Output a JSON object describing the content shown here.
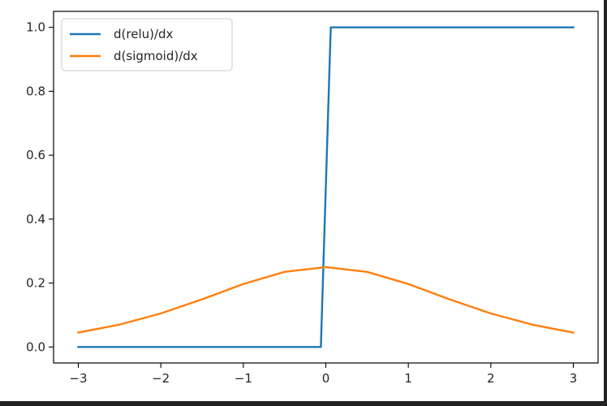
{
  "chart_data": {
    "type": "line",
    "title": "",
    "xlabel": "",
    "ylabel": "",
    "xlim": [
      -3.3,
      3.3
    ],
    "ylim": [
      -0.05,
      1.05
    ],
    "xticks": [
      -3,
      -2,
      -1,
      0,
      1,
      2,
      3
    ],
    "xtick_labels": [
      "−3",
      "−2",
      "−1",
      "0",
      "1",
      "2",
      "3"
    ],
    "yticks": [
      0.0,
      0.2,
      0.4,
      0.6,
      0.8,
      1.0
    ],
    "ytick_labels": [
      "0.0",
      "0.2",
      "0.4",
      "0.6",
      "0.8",
      "1.0"
    ],
    "grid": false,
    "legend_position": "upper-left",
    "series": [
      {
        "name": "d(relu)/dx",
        "color": "#1f77b4",
        "x": [
          -3.0,
          -0.06,
          0.06,
          3.0
        ],
        "y": [
          0.0,
          0.0,
          1.0,
          1.0
        ]
      },
      {
        "name": "d(sigmoid)/dx",
        "color": "#ff7f0e",
        "x": [
          -3.0,
          -2.5,
          -2.0,
          -1.5,
          -1.0,
          -0.5,
          0.0,
          0.5,
          1.0,
          1.5,
          2.0,
          2.5,
          3.0
        ],
        "y": [
          0.045,
          0.07,
          0.105,
          0.149,
          0.197,
          0.235,
          0.25,
          0.235,
          0.197,
          0.149,
          0.105,
          0.07,
          0.045
        ]
      }
    ]
  }
}
